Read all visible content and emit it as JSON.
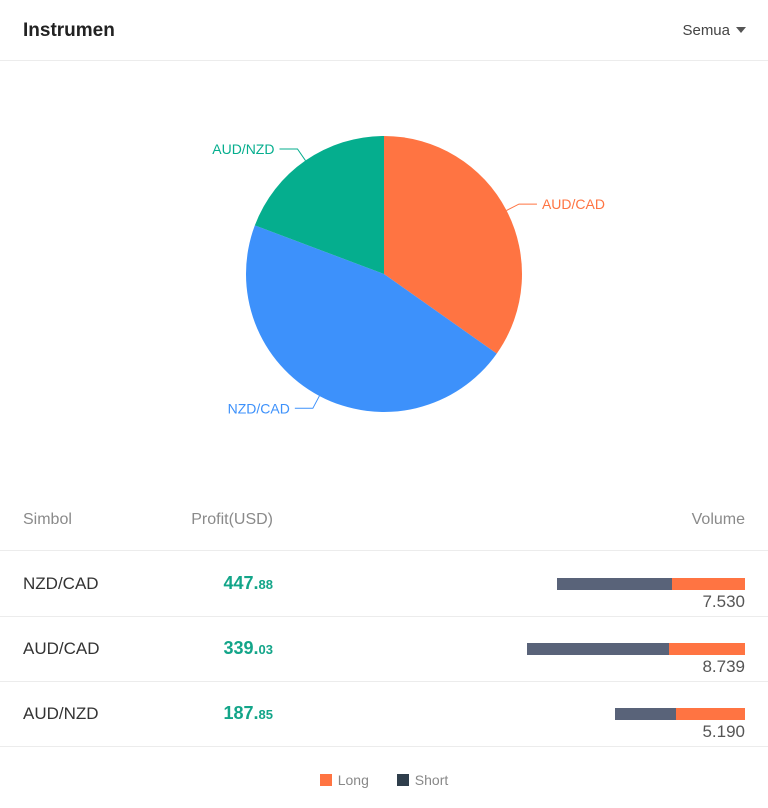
{
  "header": {
    "title": "Instrumen",
    "filter_label": "Semua"
  },
  "chart_data": {
    "type": "pie",
    "slices": [
      {
        "label": "AUD/CAD",
        "value": 339.03,
        "color": "#ff7442"
      },
      {
        "label": "NZD/CAD",
        "value": 447.88,
        "color": "#3d91fb"
      },
      {
        "label": "AUD/NZD",
        "value": 187.85,
        "color": "#05ae8e"
      }
    ]
  },
  "table": {
    "headers": {
      "symbol": "Simbol",
      "profit": "Profit(USD)",
      "volume": "Volume"
    },
    "rows": [
      {
        "symbol": "NZD/CAD",
        "profit_int": "447.",
        "profit_dec": "88",
        "volume": "7.530",
        "short_share": 0.61,
        "long_share": 0.39
      },
      {
        "symbol": "AUD/CAD",
        "profit_int": "339.",
        "profit_dec": "03",
        "volume": "8.739",
        "short_share": 0.65,
        "long_share": 0.35
      },
      {
        "symbol": "AUD/NZD",
        "profit_int": "187.",
        "profit_dec": "85",
        "volume": "5.190",
        "short_share": 0.47,
        "long_share": 0.53
      }
    ]
  },
  "legend": [
    {
      "label": "Long",
      "color": "#ff7442"
    },
    {
      "label": "Short",
      "color": "#2f3e4c"
    }
  ]
}
